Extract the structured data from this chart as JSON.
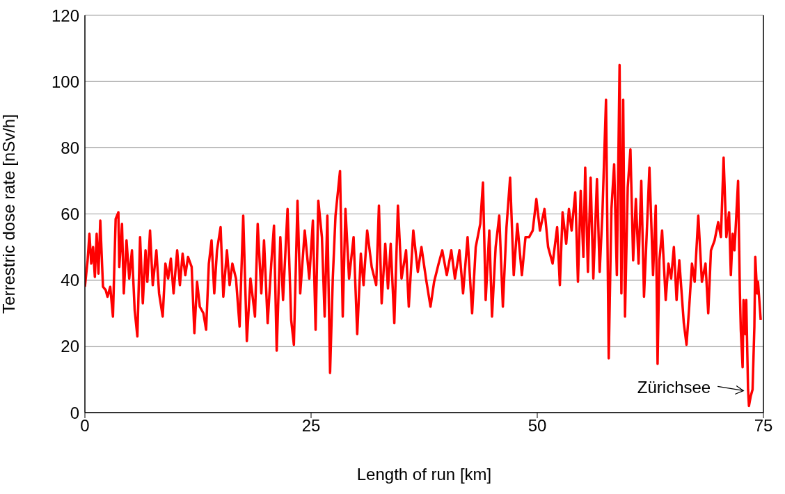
{
  "chart_data": {
    "type": "line",
    "xlabel": "Length of run [km]",
    "ylabel": "Terrestric dose rate [nSv/h]",
    "xlim": [
      0,
      75
    ],
    "xticks": [
      0,
      25,
      50,
      75
    ],
    "ylim": [
      0,
      120
    ],
    "yticks": [
      0,
      20,
      40,
      60,
      80,
      100,
      120
    ],
    "grid": "y",
    "marker": "none",
    "line_style": "solid",
    "legend": false,
    "annotations": [
      {
        "text": "Zürichsee",
        "x": 73.4,
        "y": 2
      }
    ],
    "series": [
      {
        "color": "#ff0000",
        "x": [
          0,
          0.3,
          0.5,
          0.7,
          0.9,
          1.1,
          1.3,
          1.5,
          1.7,
          2.0,
          2.3,
          2.5,
          2.8,
          3.1,
          3.4,
          3.7,
          3.8,
          4.1,
          4.3,
          4.6,
          4.9,
          5.2,
          5.5,
          5.8,
          6.1,
          6.4,
          6.7,
          6.9,
          7.2,
          7.5,
          7.9,
          8.2,
          8.6,
          8.9,
          9.2,
          9.5,
          9.8,
          10.2,
          10.5,
          10.8,
          11.1,
          11.4,
          11.8,
          12.1,
          12.4,
          12.7,
          13.1,
          13.4,
          13.7,
          14.0,
          14.3,
          14.6,
          15.0,
          15.3,
          15.7,
          16.0,
          16.3,
          16.7,
          17.1,
          17.5,
          17.9,
          18.3,
          18.8,
          19.1,
          19.5,
          19.8,
          20.2,
          20.6,
          20.9,
          21.2,
          21.6,
          21.9,
          22.4,
          22.8,
          23.1,
          23.5,
          23.8,
          24.3,
          24.8,
          25.2,
          25.5,
          25.8,
          26.2,
          26.5,
          26.8,
          27.1,
          27.4,
          27.7,
          28.2,
          28.5,
          28.8,
          29.2,
          29.7,
          30.1,
          30.5,
          30.8,
          31.2,
          31.7,
          32.2,
          32.5,
          32.8,
          33.2,
          33.5,
          33.8,
          34.2,
          34.6,
          35.0,
          35.5,
          35.8,
          36.3,
          36.8,
          37.2,
          37.7,
          38.2,
          38.6,
          39.1,
          39.5,
          40.0,
          40.5,
          40.9,
          41.4,
          41.8,
          42.3,
          42.8,
          43.2,
          43.7,
          44.0,
          44.3,
          44.7,
          45.0,
          45.4,
          45.8,
          46.2,
          46.6,
          47.0,
          47.4,
          47.8,
          48.3,
          48.7,
          49.1,
          49.5,
          49.9,
          50.3,
          50.8,
          51.2,
          51.7,
          52.2,
          52.5,
          52.8,
          53.2,
          53.5,
          53.8,
          54.2,
          54.5,
          54.8,
          55.1,
          55.3,
          55.6,
          55.9,
          56.2,
          56.6,
          56.9,
          57.2,
          57.6,
          57.9,
          58.2,
          58.5,
          58.8,
          59.1,
          59.3,
          59.5,
          59.7,
          60.0,
          60.3,
          60.6,
          60.9,
          61.2,
          61.5,
          61.8,
          62.1,
          62.4,
          62.8,
          63.1,
          63.3,
          63.5,
          63.8,
          64.2,
          64.5,
          64.8,
          65.1,
          65.4,
          65.7,
          66.2,
          66.5,
          66.8,
          67.1,
          67.4,
          67.8,
          68.2,
          68.6,
          68.9,
          69.2,
          69.6,
          70.0,
          70.3,
          70.6,
          70.9,
          71.2,
          71.4,
          71.6,
          71.8,
          72.2,
          72.4,
          72.5,
          72.7,
          72.8,
          73.0,
          73.1,
          73.3,
          73.4,
          73.6,
          73.8,
          74.0,
          74.1,
          74.3,
          74.4,
          74.7
        ],
        "values": [
          38,
          46,
          54,
          45,
          50,
          41,
          54,
          42,
          58,
          38,
          37,
          35,
          38,
          29,
          58.5,
          60.5,
          44,
          57,
          36,
          52,
          40.5,
          49,
          31,
          23,
          53,
          33,
          49,
          39.5,
          55,
          38.5,
          49,
          36,
          29,
          45,
          40.5,
          46.5,
          36,
          49,
          38.5,
          48,
          41.5,
          47,
          44,
          24,
          39.5,
          32,
          30,
          25,
          45,
          52,
          36,
          49,
          56,
          35,
          49,
          38.5,
          45,
          40.5,
          26,
          59.5,
          21.6,
          40.5,
          29,
          57,
          36,
          52,
          27,
          45,
          56.5,
          18.7,
          53,
          34,
          61.5,
          28,
          20.5,
          64,
          36,
          55,
          40.5,
          58,
          25,
          64,
          53,
          29,
          59.5,
          12,
          40.5,
          59.5,
          73,
          29,
          61.5,
          40.5,
          53,
          23.7,
          48,
          38.5,
          55,
          44,
          38.5,
          62.5,
          33,
          51,
          37.5,
          51,
          27,
          62.5,
          40.5,
          49,
          32,
          55,
          42.5,
          50,
          40.5,
          32,
          39.5,
          45,
          49,
          41.5,
          49,
          40.5,
          49,
          36,
          53,
          30,
          50,
          57,
          69.5,
          34,
          55,
          29,
          50,
          59.5,
          32,
          56,
          71,
          41.5,
          57,
          41.5,
          53,
          53,
          55,
          64.5,
          55,
          61.5,
          50,
          45,
          56,
          38.5,
          60.5,
          51,
          61.5,
          55,
          66.5,
          39.5,
          67,
          47,
          74,
          42.5,
          71,
          40.5,
          70.5,
          42.5,
          60,
          94.5,
          16.4,
          61.5,
          75,
          41.5,
          105,
          36,
          94.5,
          29,
          68,
          79.5,
          46,
          64.5,
          45,
          70,
          35,
          54,
          74,
          41.5,
          62.5,
          14.7,
          46,
          55,
          34,
          45,
          40.5,
          50,
          34,
          46,
          27,
          20.5,
          32,
          45,
          39.5,
          59.5,
          39.5,
          45,
          30,
          49,
          52,
          57.5,
          53,
          77,
          53,
          60.5,
          41.5,
          54,
          49,
          70,
          36,
          25,
          13.7,
          34,
          23.7,
          34,
          7,
          2,
          5,
          7,
          26,
          47,
          36,
          39.5,
          28
        ]
      }
    ]
  }
}
